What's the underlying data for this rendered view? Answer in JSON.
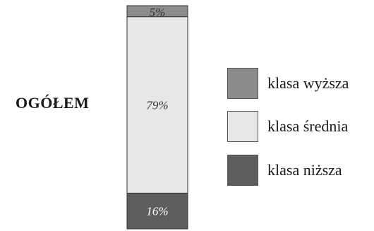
{
  "row_label": "OGÓŁEM",
  "chart_data": {
    "type": "bar",
    "stacked": true,
    "categories": [
      "OGÓŁEM"
    ],
    "series": [
      {
        "name": "klasa wyższa",
        "values": [
          5
        ],
        "label": "5%",
        "color": "#8c8c8c"
      },
      {
        "name": "klasa średnia",
        "values": [
          79
        ],
        "label": "79%",
        "color": "#e6e7e9"
      },
      {
        "name": "klasa niższa",
        "values": [
          16
        ],
        "label": "16%",
        "color": "#5e5e5e"
      }
    ],
    "unit": "%",
    "ylim": [
      0,
      100
    ],
    "legend_position": "right",
    "grid": false
  }
}
